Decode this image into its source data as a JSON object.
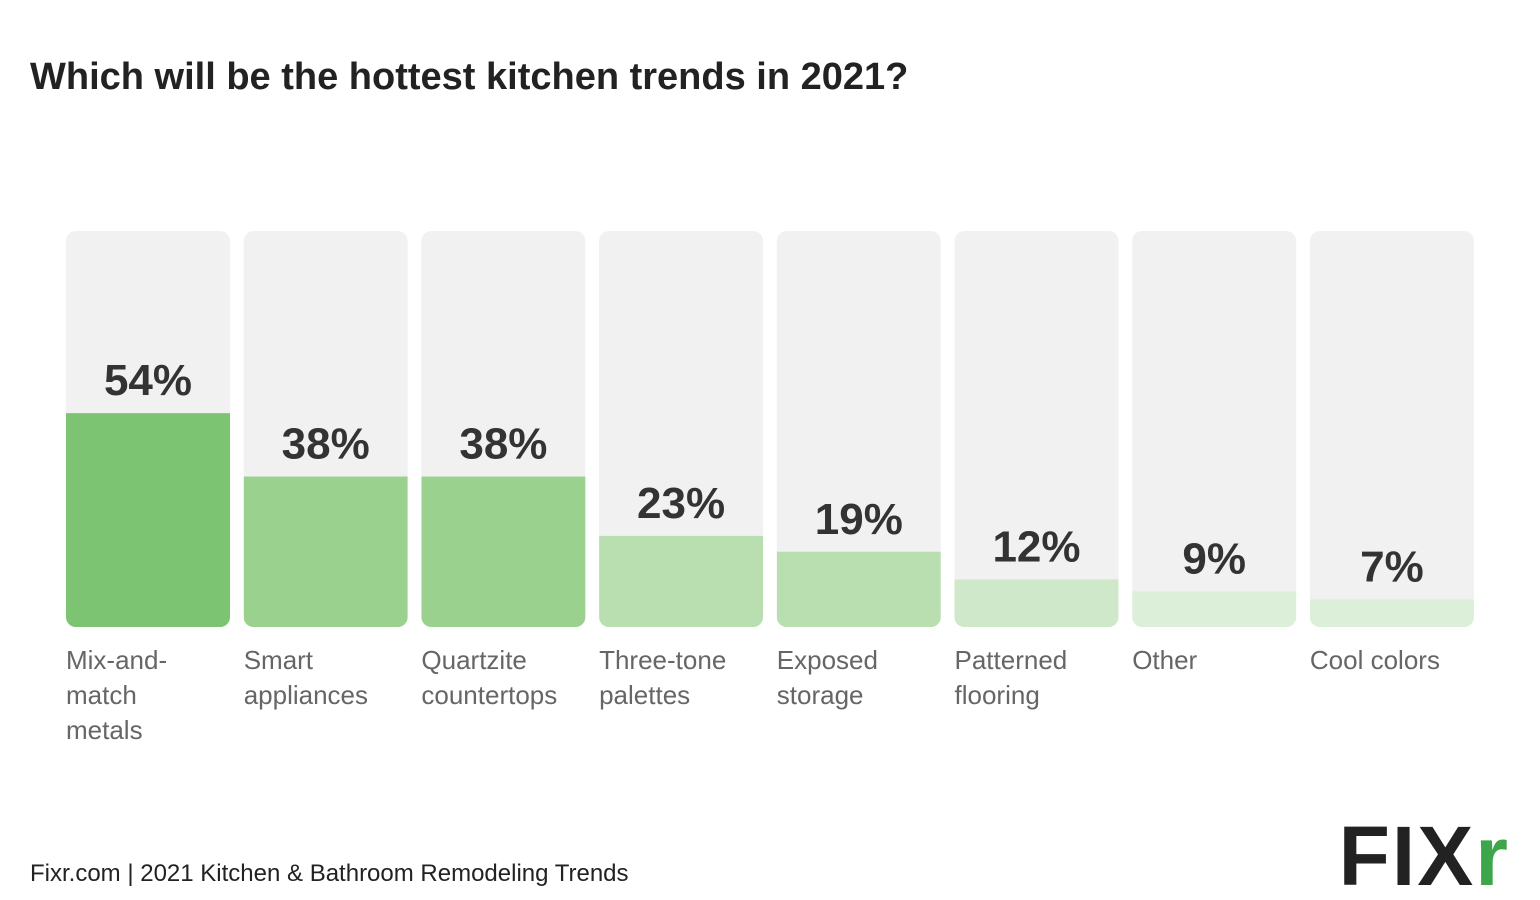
{
  "chart_data": {
    "type": "bar",
    "title": "Which will be the hottest kitchen trends in 2021?",
    "categories": [
      "Mix-and-match metals",
      "Smart appliances",
      "Quartzite countertops",
      "Three-tone palettes",
      "Exposed storage",
      "Patterned flooring",
      "Other",
      "Cool colors"
    ],
    "values": [
      54,
      38,
      38,
      23,
      19,
      12,
      9,
      7
    ],
    "value_labels": [
      "54%",
      "38%",
      "38%",
      "23%",
      "19%",
      "12%",
      "9%",
      "7%"
    ],
    "colors": [
      "#7dc472",
      "#9bd18f",
      "#9bd18f",
      "#b9deb0",
      "#b9deb0",
      "#cfe8c9",
      "#dcefd8",
      "#dcefd8"
    ],
    "panel_color": "#f1f1f1",
    "ylim": [
      0,
      100
    ],
    "source": "Fixr.com | 2021 Kitchen & Bathroom Remodeling Trends",
    "logo": [
      "FIX",
      "r"
    ]
  }
}
